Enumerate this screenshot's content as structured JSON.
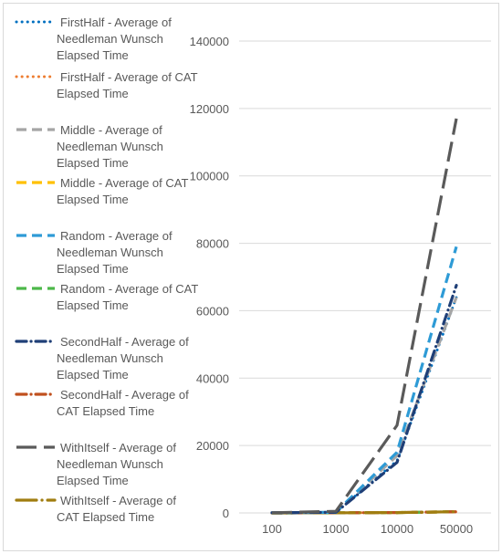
{
  "chart_data": {
    "type": "line",
    "categories": [
      "100",
      "1000",
      "10000",
      "50000"
    ],
    "y_ticks": [
      "0",
      "20000",
      "40000",
      "60000",
      "80000",
      "100000",
      "120000",
      "140000"
    ],
    "ylim": [
      0,
      140000
    ],
    "grid": true,
    "legend_position": "left",
    "series": [
      {
        "name": "FirstHalf - Average of Needleman Wunsch Elapsed Time",
        "lines": [
          "FirstHalf - Average of",
          "Needleman Wunsch",
          "Elapsed Time"
        ],
        "color": "#0070c0",
        "dash": "round-dot",
        "values": [
          60,
          200,
          15500,
          64000
        ]
      },
      {
        "name": "FirstHalf - Average of CAT Elapsed Time",
        "lines": [
          "FirstHalf - Average of CAT",
          "Elapsed Time"
        ],
        "color": "#ed7d31",
        "dash": "round-dot",
        "values": [
          10,
          30,
          120,
          350
        ]
      },
      {
        "name": "Middle - Average of Needleman Wunsch Elapsed Time",
        "lines": [
          "Middle - Average of",
          "Needleman Wunsch",
          "Elapsed Time"
        ],
        "color": "#a5a5a5",
        "dash": "dash",
        "values": [
          60,
          200,
          17000,
          64000
        ]
      },
      {
        "name": "Middle - Average of CAT Elapsed Time",
        "lines": [
          "Middle - Average of CAT",
          "Elapsed Time"
        ],
        "color": "#ffc000",
        "dash": "dash",
        "values": [
          10,
          30,
          120,
          350
        ]
      },
      {
        "name": "Random - Average of Needleman Wunsch Elapsed Time",
        "lines": [
          "Random - Average of",
          "Needleman Wunsch",
          "Elapsed Time"
        ],
        "color": "#2e9bd6",
        "dash": "dash",
        "values": [
          60,
          200,
          18000,
          79000
        ]
      },
      {
        "name": "Random - Average of CAT Elapsed Time",
        "lines": [
          "Random - Average of CAT",
          "Elapsed Time"
        ],
        "color": "#4db84a",
        "dash": "dash",
        "values": [
          10,
          30,
          120,
          350
        ]
      },
      {
        "name": "SecondHalf - Average of Needleman Wunsch Elapsed Time",
        "lines": [
          "SecondHalf - Average of",
          "Needleman Wunsch",
          "Elapsed Time"
        ],
        "color": "#1f3f77",
        "dash": "dash-dot",
        "values": [
          60,
          200,
          15000,
          67500
        ]
      },
      {
        "name": "SecondHalf - Average of CAT Elapsed Time",
        "lines": [
          "SecondHalf - Average of",
          "CAT Elapsed Time"
        ],
        "color": "#c0501e",
        "dash": "dash-dot",
        "values": [
          10,
          30,
          120,
          350
        ]
      },
      {
        "name": "WithItself - Average of Needleman Wunsch Elapsed Time",
        "lines": [
          "WithItself - Average of",
          "Needleman Wunsch",
          "Elapsed Time"
        ],
        "color": "#5a5a5a",
        "dash": "long-dash",
        "values": [
          60,
          500,
          26000,
          117000
        ]
      },
      {
        "name": "WithItself - Average of CAT Elapsed Time",
        "lines": [
          "WithItself - Average of",
          "CAT Elapsed Time"
        ],
        "color": "#a07d10",
        "dash": "long-dash-dot",
        "values": [
          10,
          30,
          120,
          350
        ]
      }
    ]
  }
}
